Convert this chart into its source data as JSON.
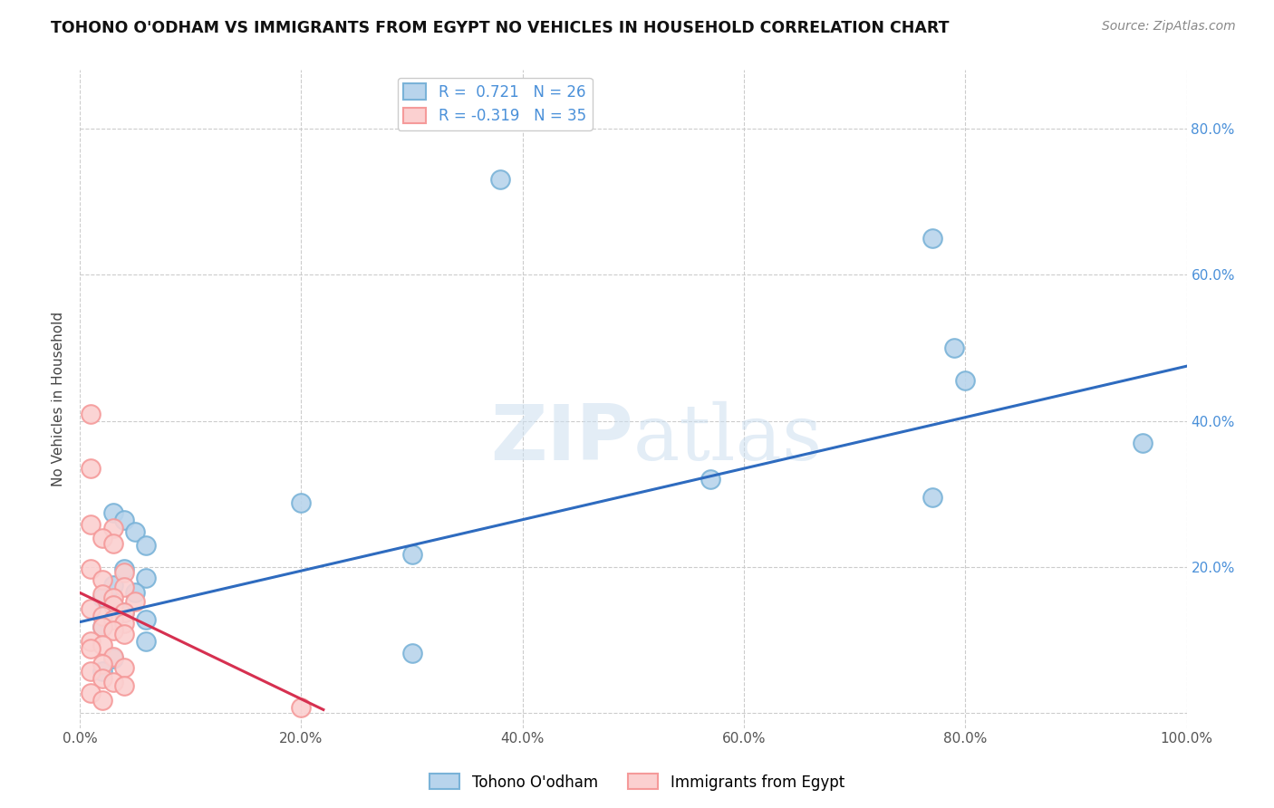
{
  "title": "TOHONO O'ODHAM VS IMMIGRANTS FROM EGYPT NO VEHICLES IN HOUSEHOLD CORRELATION CHART",
  "source": "Source: ZipAtlas.com",
  "ylabel": "No Vehicles in Household",
  "xlim": [
    0.0,
    1.0
  ],
  "ylim": [
    -0.02,
    0.88
  ],
  "plot_ylim": [
    0.0,
    0.88
  ],
  "legend_r1": "R =  0.721   N = 26",
  "legend_r2": "R = -0.319   N = 35",
  "blue_color": "#7ab3d8",
  "pink_color": "#f59a9a",
  "blue_fill": "#b8d4ec",
  "pink_fill": "#fbd0d0",
  "line_blue": "#2e6bbf",
  "line_pink": "#d63050",
  "right_tick_color": "#4a90d9",
  "watermark_color": "#ccdff0",
  "blue_points": [
    [
      0.38,
      0.73
    ],
    [
      0.77,
      0.65
    ],
    [
      0.79,
      0.5
    ],
    [
      0.8,
      0.455
    ],
    [
      0.96,
      0.37
    ],
    [
      0.57,
      0.32
    ],
    [
      0.77,
      0.295
    ],
    [
      0.2,
      0.288
    ],
    [
      0.03,
      0.275
    ],
    [
      0.04,
      0.265
    ],
    [
      0.05,
      0.248
    ],
    [
      0.06,
      0.23
    ],
    [
      0.3,
      0.218
    ],
    [
      0.04,
      0.198
    ],
    [
      0.06,
      0.185
    ],
    [
      0.03,
      0.175
    ],
    [
      0.05,
      0.165
    ],
    [
      0.02,
      0.158
    ],
    [
      0.03,
      0.148
    ],
    [
      0.04,
      0.138
    ],
    [
      0.06,
      0.128
    ],
    [
      0.02,
      0.118
    ],
    [
      0.06,
      0.098
    ],
    [
      0.3,
      0.082
    ],
    [
      0.03,
      0.075
    ],
    [
      0.02,
      0.058
    ]
  ],
  "pink_points": [
    [
      0.01,
      0.41
    ],
    [
      0.01,
      0.335
    ],
    [
      0.01,
      0.258
    ],
    [
      0.03,
      0.253
    ],
    [
      0.02,
      0.24
    ],
    [
      0.03,
      0.232
    ],
    [
      0.01,
      0.198
    ],
    [
      0.04,
      0.193
    ],
    [
      0.02,
      0.183
    ],
    [
      0.04,
      0.173
    ],
    [
      0.02,
      0.163
    ],
    [
      0.03,
      0.158
    ],
    [
      0.05,
      0.153
    ],
    [
      0.03,
      0.148
    ],
    [
      0.01,
      0.143
    ],
    [
      0.04,
      0.138
    ],
    [
      0.02,
      0.133
    ],
    [
      0.03,
      0.128
    ],
    [
      0.04,
      0.123
    ],
    [
      0.02,
      0.118
    ],
    [
      0.03,
      0.113
    ],
    [
      0.04,
      0.108
    ],
    [
      0.01,
      0.098
    ],
    [
      0.02,
      0.093
    ],
    [
      0.01,
      0.088
    ],
    [
      0.03,
      0.078
    ],
    [
      0.02,
      0.068
    ],
    [
      0.04,
      0.063
    ],
    [
      0.01,
      0.058
    ],
    [
      0.02,
      0.048
    ],
    [
      0.03,
      0.043
    ],
    [
      0.04,
      0.038
    ],
    [
      0.01,
      0.028
    ],
    [
      0.02,
      0.018
    ],
    [
      0.2,
      0.008
    ]
  ],
  "blue_line_x": [
    0.0,
    1.0
  ],
  "blue_line_y": [
    0.125,
    0.475
  ],
  "pink_line_x": [
    0.0,
    0.22
  ],
  "pink_line_y": [
    0.165,
    0.005
  ]
}
